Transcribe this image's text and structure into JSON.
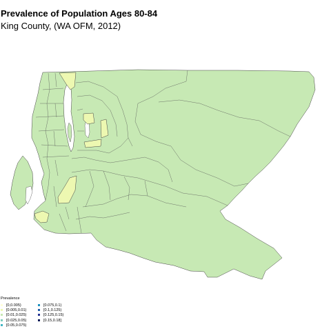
{
  "title": "Prevalence of Population Ages 80-84",
  "subtitle": "King County, (WA OFM, 2012)",
  "colors": {
    "water": "#ffffff",
    "region_border": "#444444"
  },
  "map": {
    "region": "King County, WA",
    "highlighted_class": "[0.005,0.01)",
    "base_class": "[0.01,0.025)"
  },
  "legend": {
    "title": "Prevalence",
    "items": [
      {
        "label": "[0,0.005)",
        "color": "#ffffd9"
      },
      {
        "label": "[0.005,0.01)",
        "color": "#edf8b1"
      },
      {
        "label": "[0.01,0.025)",
        "color": "#c7e9b4"
      },
      {
        "label": "[0.025,0.05)",
        "color": "#7fcdbb"
      },
      {
        "label": "[0.05,0.075)",
        "color": "#41b6c4"
      },
      {
        "label": "[0.075,0.1)",
        "color": "#1d91c0"
      },
      {
        "label": "[0.1,0.125)",
        "color": "#225ea8"
      },
      {
        "label": "[0.125,0.15)",
        "color": "#253494"
      },
      {
        "label": "[0.15,0.18]",
        "color": "#081d58"
      }
    ]
  }
}
